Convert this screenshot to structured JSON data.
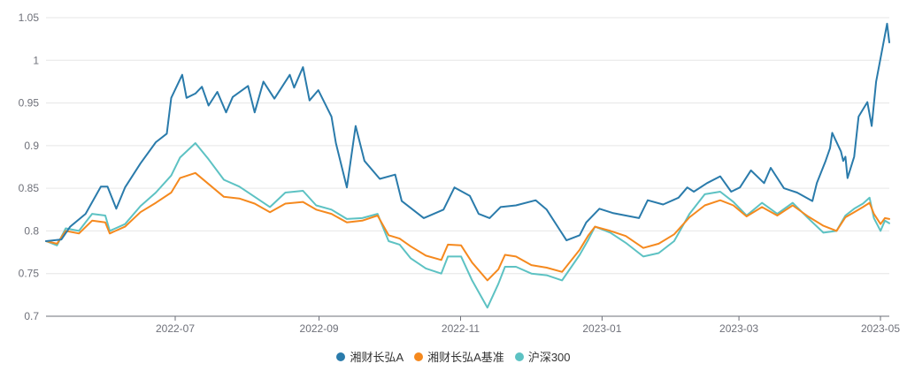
{
  "chart_data": {
    "type": "line",
    "title": "",
    "xlabel": "",
    "ylabel": "",
    "ylim": [
      0.7,
      1.05
    ],
    "yticks": [
      "0.7",
      "0.75",
      "0.8",
      "0.85",
      "0.9",
      "0.95",
      "1",
      "1.05"
    ],
    "xticks": [
      "2022-07",
      "2022-09",
      "2022-11",
      "2023-01",
      "2023-03",
      "2023-05"
    ],
    "x_range": [
      "2022-05",
      "2023-05-05"
    ],
    "grid": true,
    "legend_position": "bottom",
    "series": [
      {
        "name": "湘财长弘A",
        "color": "#2a7bab",
        "points": [
          [
            "2022-05-05",
            0.788
          ],
          [
            "2022-05-12",
            0.79
          ],
          [
            "2022-05-16",
            0.805
          ],
          [
            "2022-05-23",
            0.82
          ],
          [
            "2022-05-30",
            0.852
          ],
          [
            "2022-06-02",
            0.852
          ],
          [
            "2022-06-06",
            0.826
          ],
          [
            "2022-06-10",
            0.851
          ],
          [
            "2022-06-17",
            0.879
          ],
          [
            "2022-06-24",
            0.904
          ],
          [
            "2022-06-29",
            0.914
          ],
          [
            "2022-07-01",
            0.956
          ],
          [
            "2022-07-06",
            0.983
          ],
          [
            "2022-07-08",
            0.956
          ],
          [
            "2022-07-12",
            0.961
          ],
          [
            "2022-07-15",
            0.969
          ],
          [
            "2022-07-18",
            0.947
          ],
          [
            "2022-07-22",
            0.963
          ],
          [
            "2022-07-26",
            0.939
          ],
          [
            "2022-07-29",
            0.957
          ],
          [
            "2022-08-05",
            0.97
          ],
          [
            "2022-08-08",
            0.939
          ],
          [
            "2022-08-12",
            0.975
          ],
          [
            "2022-08-17",
            0.955
          ],
          [
            "2022-08-24",
            0.983
          ],
          [
            "2022-08-26",
            0.968
          ],
          [
            "2022-08-30",
            0.992
          ],
          [
            "2022-09-02",
            0.953
          ],
          [
            "2022-09-06",
            0.965
          ],
          [
            "2022-09-12",
            0.934
          ],
          [
            "2022-09-14",
            0.903
          ],
          [
            "2022-09-19",
            0.851
          ],
          [
            "2022-09-23",
            0.923
          ],
          [
            "2022-09-27",
            0.882
          ],
          [
            "2022-10-04",
            0.861
          ],
          [
            "2022-10-11",
            0.866
          ],
          [
            "2022-10-14",
            0.835
          ],
          [
            "2022-10-24",
            0.815
          ],
          [
            "2022-11-02",
            0.825
          ],
          [
            "2022-11-07",
            0.851
          ],
          [
            "2022-11-14",
            0.841
          ],
          [
            "2022-11-18",
            0.82
          ],
          [
            "2022-11-23",
            0.815
          ],
          [
            "2022-11-28",
            0.828
          ],
          [
            "2022-12-05",
            0.83
          ],
          [
            "2022-12-14",
            0.836
          ],
          [
            "2022-12-19",
            0.825
          ],
          [
            "2022-12-28",
            0.789
          ],
          [
            "2023-01-03",
            0.795
          ],
          [
            "2023-01-06",
            0.81
          ],
          [
            "2023-01-12",
            0.826
          ],
          [
            "2023-01-18",
            0.821
          ],
          [
            "2023-01-30",
            0.815
          ],
          [
            "2023-02-03",
            0.836
          ],
          [
            "2023-02-10",
            0.831
          ],
          [
            "2023-02-17",
            0.839
          ],
          [
            "2023-02-21",
            0.851
          ],
          [
            "2023-02-24",
            0.846
          ],
          [
            "2023-03-02",
            0.856
          ],
          [
            "2023-03-08",
            0.864
          ],
          [
            "2023-03-13",
            0.846
          ],
          [
            "2023-03-17",
            0.851
          ],
          [
            "2023-03-22",
            0.871
          ],
          [
            "2023-03-28",
            0.856
          ],
          [
            "2023-03-31",
            0.874
          ],
          [
            "2023-04-06",
            0.85
          ],
          [
            "2023-04-12",
            0.845
          ],
          [
            "2023-04-19",
            0.835
          ],
          [
            "2023-04-21",
            0.856
          ],
          [
            "2023-04-25",
            0.882
          ],
          [
            "2023-04-27",
            0.897
          ],
          [
            "2023-04-28",
            0.915
          ],
          [
            "2023-05-02",
            0.893
          ],
          [
            "2023-05-03",
            0.882
          ],
          [
            "2023-05-04",
            0.887
          ],
          [
            "2023-05-05",
            0.862
          ],
          [
            "2023-05-08",
            0.887
          ],
          [
            "2023-05-10",
            0.934
          ],
          [
            "2023-05-14",
            0.951
          ],
          [
            "2023-05-16",
            0.923
          ],
          [
            "2023-05-18",
            0.975
          ],
          [
            "2023-05-23",
            1.043
          ],
          [
            "2023-05-24",
            1.021
          ]
        ]
      },
      {
        "name": "湘财长弘A基准",
        "color": "#f5891e",
        "points": [
          [
            "2022-05-05",
            0.788
          ],
          [
            "2022-05-10",
            0.785
          ],
          [
            "2022-05-14",
            0.8
          ],
          [
            "2022-05-20",
            0.797
          ],
          [
            "2022-05-26",
            0.812
          ],
          [
            "2022-06-01",
            0.81
          ],
          [
            "2022-06-03",
            0.797
          ],
          [
            "2022-06-10",
            0.805
          ],
          [
            "2022-06-17",
            0.822
          ],
          [
            "2022-06-24",
            0.833
          ],
          [
            "2022-07-01",
            0.845
          ],
          [
            "2022-07-05",
            0.862
          ],
          [
            "2022-07-12",
            0.868
          ],
          [
            "2022-07-18",
            0.855
          ],
          [
            "2022-07-25",
            0.84
          ],
          [
            "2022-08-01",
            0.838
          ],
          [
            "2022-08-08",
            0.832
          ],
          [
            "2022-08-15",
            0.822
          ],
          [
            "2022-08-22",
            0.832
          ],
          [
            "2022-08-30",
            0.834
          ],
          [
            "2022-09-05",
            0.825
          ],
          [
            "2022-09-12",
            0.82
          ],
          [
            "2022-09-19",
            0.81
          ],
          [
            "2022-09-26",
            0.812
          ],
          [
            "2022-10-03",
            0.818
          ],
          [
            "2022-10-08",
            0.795
          ],
          [
            "2022-10-13",
            0.791
          ],
          [
            "2022-10-18",
            0.782
          ],
          [
            "2022-10-25",
            0.771
          ],
          [
            "2022-11-01",
            0.766
          ],
          [
            "2022-11-04",
            0.784
          ],
          [
            "2022-11-10",
            0.783
          ],
          [
            "2022-11-15",
            0.763
          ],
          [
            "2022-11-22",
            0.742
          ],
          [
            "2022-11-27",
            0.755
          ],
          [
            "2022-11-30",
            0.772
          ],
          [
            "2022-12-05",
            0.77
          ],
          [
            "2022-12-12",
            0.76
          ],
          [
            "2022-12-19",
            0.757
          ],
          [
            "2022-12-26",
            0.752
          ],
          [
            "2023-01-03",
            0.778
          ],
          [
            "2023-01-07",
            0.795
          ],
          [
            "2023-01-10",
            0.805
          ],
          [
            "2023-01-17",
            0.8
          ],
          [
            "2023-01-24",
            0.794
          ],
          [
            "2023-02-01",
            0.78
          ],
          [
            "2023-02-08",
            0.785
          ],
          [
            "2023-02-15",
            0.796
          ],
          [
            "2023-02-22",
            0.816
          ],
          [
            "2023-03-01",
            0.83
          ],
          [
            "2023-03-08",
            0.836
          ],
          [
            "2023-03-14",
            0.83
          ],
          [
            "2023-03-20",
            0.817
          ],
          [
            "2023-03-27",
            0.828
          ],
          [
            "2023-04-03",
            0.818
          ],
          [
            "2023-04-10",
            0.83
          ],
          [
            "2023-04-17",
            0.817
          ],
          [
            "2023-04-24",
            0.806
          ],
          [
            "2023-04-30",
            0.8
          ],
          [
            "2023-05-04",
            0.816
          ],
          [
            "2023-05-08",
            0.822
          ],
          [
            "2023-05-12",
            0.828
          ],
          [
            "2023-05-15",
            0.833
          ],
          [
            "2023-05-17",
            0.82
          ],
          [
            "2023-05-20",
            0.808
          ],
          [
            "2023-05-22",
            0.815
          ],
          [
            "2023-05-24",
            0.814
          ]
        ]
      },
      {
        "name": "沪深300",
        "color": "#5dc2c3",
        "points": [
          [
            "2022-05-05",
            0.788
          ],
          [
            "2022-05-10",
            0.783
          ],
          [
            "2022-05-14",
            0.803
          ],
          [
            "2022-05-20",
            0.8
          ],
          [
            "2022-05-26",
            0.82
          ],
          [
            "2022-06-01",
            0.818
          ],
          [
            "2022-06-03",
            0.8
          ],
          [
            "2022-06-10",
            0.808
          ],
          [
            "2022-06-17",
            0.829
          ],
          [
            "2022-06-24",
            0.845
          ],
          [
            "2022-07-01",
            0.865
          ],
          [
            "2022-07-05",
            0.886
          ],
          [
            "2022-07-12",
            0.903
          ],
          [
            "2022-07-18",
            0.884
          ],
          [
            "2022-07-25",
            0.86
          ],
          [
            "2022-08-01",
            0.852
          ],
          [
            "2022-08-08",
            0.84
          ],
          [
            "2022-08-15",
            0.828
          ],
          [
            "2022-08-22",
            0.845
          ],
          [
            "2022-08-30",
            0.847
          ],
          [
            "2022-09-05",
            0.83
          ],
          [
            "2022-09-12",
            0.825
          ],
          [
            "2022-09-19",
            0.814
          ],
          [
            "2022-09-26",
            0.815
          ],
          [
            "2022-10-03",
            0.82
          ],
          [
            "2022-10-08",
            0.788
          ],
          [
            "2022-10-13",
            0.784
          ],
          [
            "2022-10-18",
            0.768
          ],
          [
            "2022-10-25",
            0.756
          ],
          [
            "2022-11-01",
            0.75
          ],
          [
            "2022-11-04",
            0.77
          ],
          [
            "2022-11-10",
            0.77
          ],
          [
            "2022-11-15",
            0.742
          ],
          [
            "2022-11-22",
            0.71
          ],
          [
            "2022-11-27",
            0.738
          ],
          [
            "2022-11-30",
            0.758
          ],
          [
            "2022-12-05",
            0.758
          ],
          [
            "2022-12-12",
            0.75
          ],
          [
            "2022-12-19",
            0.748
          ],
          [
            "2022-12-26",
            0.742
          ],
          [
            "2023-01-03",
            0.772
          ],
          [
            "2023-01-07",
            0.79
          ],
          [
            "2023-01-10",
            0.805
          ],
          [
            "2023-01-17",
            0.798
          ],
          [
            "2023-01-24",
            0.786
          ],
          [
            "2023-02-01",
            0.77
          ],
          [
            "2023-02-08",
            0.774
          ],
          [
            "2023-02-15",
            0.788
          ],
          [
            "2023-02-22",
            0.82
          ],
          [
            "2023-03-01",
            0.843
          ],
          [
            "2023-03-08",
            0.846
          ],
          [
            "2023-03-14",
            0.834
          ],
          [
            "2023-03-20",
            0.818
          ],
          [
            "2023-03-27",
            0.833
          ],
          [
            "2023-04-03",
            0.82
          ],
          [
            "2023-04-10",
            0.833
          ],
          [
            "2023-04-17",
            0.815
          ],
          [
            "2023-04-24",
            0.798
          ],
          [
            "2023-04-30",
            0.8
          ],
          [
            "2023-05-04",
            0.818
          ],
          [
            "2023-05-08",
            0.826
          ],
          [
            "2023-05-12",
            0.832
          ],
          [
            "2023-05-15",
            0.839
          ],
          [
            "2023-05-17",
            0.815
          ],
          [
            "2023-05-20",
            0.8
          ],
          [
            "2023-05-22",
            0.812
          ],
          [
            "2023-05-24",
            0.809
          ]
        ]
      }
    ]
  },
  "legend": {
    "items": [
      {
        "label": "湘财长弘A",
        "color": "#2a7bab"
      },
      {
        "label": "湘财长弘A基准",
        "color": "#f5891e"
      },
      {
        "label": "沪深300",
        "color": "#5dc2c3"
      }
    ]
  }
}
